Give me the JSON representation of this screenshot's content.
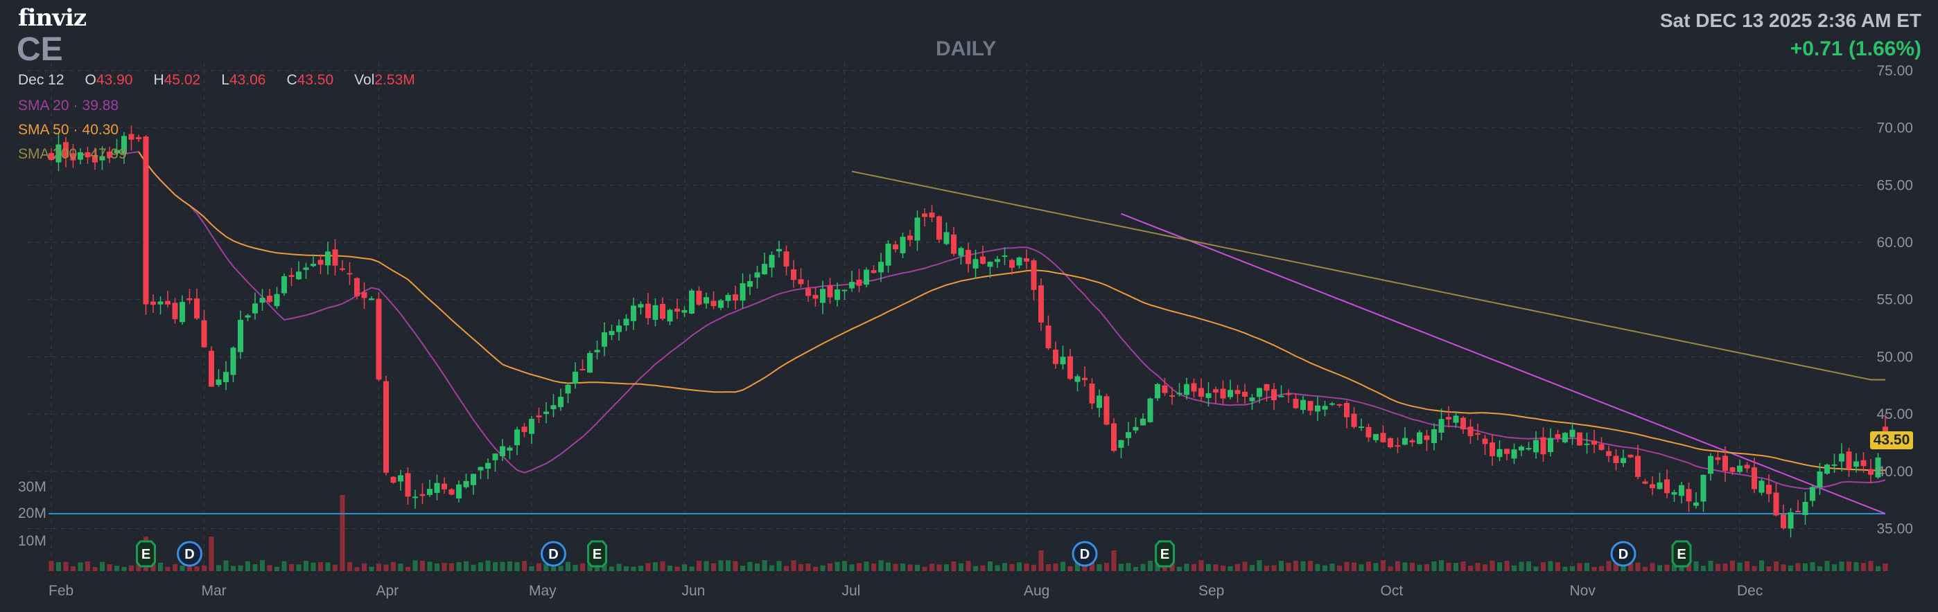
{
  "header": {
    "logo": "finviz",
    "ticker": "CE",
    "timeframe": "DAILY",
    "datetime": "Sat DEC 13 2025 2:36 AM ET",
    "change": "+0.71 (1.66%)"
  },
  "ohlc": {
    "date": "Dec 12",
    "open_label": "O",
    "open": "43.90",
    "high_label": "H",
    "high": "45.02",
    "low_label": "L",
    "low": "43.06",
    "close_label": "C",
    "close": "43.50",
    "vol_label": "Vol",
    "vol": "2.53M"
  },
  "indicators": [
    {
      "label": "SMA 20",
      "value": "39.88",
      "color": "#a23ea0"
    },
    {
      "label": "SMA 50",
      "value": "40.30",
      "color": "#ee9b3c"
    },
    {
      "label": "SMA 200",
      "value": "47.99",
      "color": "#9a8a45"
    }
  ],
  "last_price_label": "43.50",
  "colors": {
    "background": "#22262f",
    "grid": "#343a47",
    "up": "#2bc16b",
    "down": "#f2404f",
    "sma20": "#a23ea0",
    "sma50": "#ee9b3c",
    "sma200": "#9a8a45",
    "trendline": "#c94fe0",
    "support": "#2a8fd4",
    "badge_earnings": "#1a9b58",
    "badge_dividend": "#3a8fe0"
  },
  "chart_data": {
    "type": "candlestick",
    "ylim": [
      34,
      75
    ],
    "y_ticks": [
      "75.00",
      "70.00",
      "65.00",
      "60.00",
      "55.00",
      "50.00",
      "45.00",
      "40.00",
      "35.00"
    ],
    "x_months": [
      "Feb",
      "Mar",
      "Apr",
      "May",
      "Jun",
      "Jul",
      "Aug",
      "Sep",
      "Oct",
      "Nov",
      "Dec"
    ],
    "volume_ticks": [
      "30M",
      "20M",
      "10M"
    ],
    "trendline": {
      "from": [
        147,
        62.5
      ],
      "to": [
        252,
        36.3
      ]
    },
    "support_line": 36.3,
    "events": [
      {
        "type": "E",
        "label": "E",
        "day": 13
      },
      {
        "type": "D",
        "label": "D",
        "day": 19
      },
      {
        "type": "D",
        "label": "D",
        "day": 69
      },
      {
        "type": "E",
        "label": "E",
        "day": 75
      },
      {
        "type": "D",
        "label": "D",
        "day": 142
      },
      {
        "type": "E",
        "label": "E",
        "day": 153
      },
      {
        "type": "D",
        "label": "D",
        "day": 216
      },
      {
        "type": "E",
        "label": "E",
        "day": 224
      }
    ],
    "close_keyframes": [
      [
        0,
        68
      ],
      [
        8,
        67
      ],
      [
        10,
        69
      ],
      [
        12,
        68.5
      ],
      [
        13,
        55
      ],
      [
        17,
        54
      ],
      [
        19,
        55
      ],
      [
        22,
        48
      ],
      [
        24,
        48
      ],
      [
        26,
        53
      ],
      [
        30,
        55
      ],
      [
        34,
        58
      ],
      [
        38,
        58.5
      ],
      [
        42,
        56
      ],
      [
        44,
        55
      ],
      [
        45,
        48
      ],
      [
        46,
        40
      ],
      [
        50,
        38
      ],
      [
        55,
        38.5
      ],
      [
        60,
        41
      ],
      [
        64,
        43
      ],
      [
        68,
        45
      ],
      [
        72,
        48
      ],
      [
        76,
        52
      ],
      [
        80,
        54
      ],
      [
        84,
        54
      ],
      [
        88,
        55
      ],
      [
        92,
        55
      ],
      [
        96,
        56
      ],
      [
        100,
        59
      ],
      [
        104,
        56
      ],
      [
        108,
        55.5
      ],
      [
        112,
        57
      ],
      [
        116,
        60
      ],
      [
        120,
        62
      ],
      [
        122,
        61
      ],
      [
        126,
        58
      ],
      [
        130,
        59
      ],
      [
        134,
        58
      ],
      [
        136,
        53
      ],
      [
        138,
        50
      ],
      [
        141,
        48
      ],
      [
        144,
        46
      ],
      [
        146,
        41
      ],
      [
        149,
        44
      ],
      [
        152,
        47
      ],
      [
        156,
        47
      ],
      [
        160,
        46.5
      ],
      [
        164,
        47
      ],
      [
        168,
        46
      ],
      [
        172,
        46
      ],
      [
        176,
        45.5
      ],
      [
        180,
        44
      ],
      [
        184,
        42
      ],
      [
        188,
        43
      ],
      [
        192,
        45
      ],
      [
        196,
        43
      ],
      [
        200,
        41
      ],
      [
        204,
        42
      ],
      [
        208,
        43
      ],
      [
        212,
        43
      ],
      [
        216,
        41
      ],
      [
        220,
        39
      ],
      [
        224,
        38
      ],
      [
        226,
        37
      ],
      [
        228,
        41.5
      ],
      [
        232,
        40
      ],
      [
        236,
        38
      ],
      [
        238,
        35.5
      ],
      [
        240,
        37
      ],
      [
        242,
        39
      ],
      [
        244,
        40.5
      ],
      [
        248,
        41
      ],
      [
        250,
        40.5
      ],
      [
        252,
        43.5
      ]
    ],
    "last": {
      "open": 43.9,
      "high": 45.02,
      "low": 43.06,
      "close": 43.5,
      "volume": "2.53M"
    }
  }
}
